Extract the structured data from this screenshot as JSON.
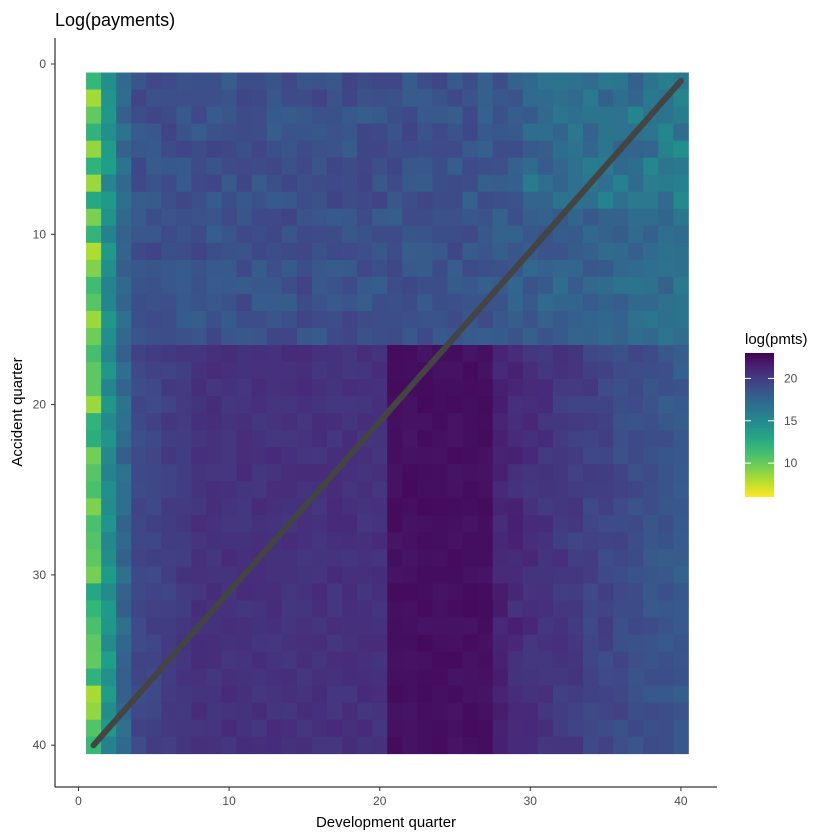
{
  "chart_data": {
    "type": "heatmap",
    "title": "Log(payments)",
    "xlabel": "Development quarter",
    "ylabel": "Accident quarter",
    "xlim": [
      -1.5,
      42.5
    ],
    "ylim": [
      41.5,
      -1.5
    ],
    "y_reversed": true,
    "x_ticks": [
      0,
      10,
      20,
      30,
      40
    ],
    "y_ticks": [
      0,
      10,
      20,
      30,
      40
    ],
    "x_count": 40,
    "y_count": 40,
    "grid": false,
    "colorscale": "viridis-reversed",
    "value_range": [
      6,
      23
    ],
    "diagonal_line": {
      "from": [
        1,
        40
      ],
      "to": [
        40,
        1
      ],
      "color": "#444444"
    },
    "legend": {
      "title": "log(pmts)",
      "ticks": [
        10,
        15,
        20
      ],
      "placement": "right"
    },
    "values_note": ""
  }
}
